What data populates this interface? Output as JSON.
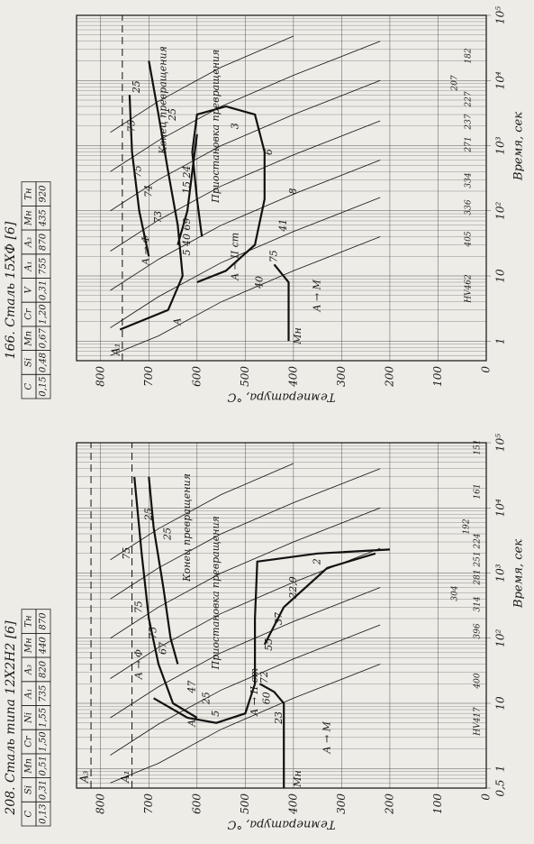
{
  "chart_data": [
    {
      "type": "line",
      "title": "208. Сталь типа 12Х2Н2 [6]",
      "table": {
        "header": [
          "C",
          "Si",
          "Mn",
          "Cr",
          "Ni",
          "A₁",
          "A₃",
          "Mн",
          "Tн"
        ],
        "row": [
          "0,13",
          "0,31",
          "0,51",
          "1,50",
          "1,55",
          "735",
          "820",
          "440",
          "870"
        ]
      },
      "xlabel": "Время, сек",
      "ylabel": "Температура, °C",
      "log_x": true,
      "grid": true,
      "xlim": [
        0.5,
        100000
      ],
      "ylim": [
        0,
        850
      ],
      "xticks": [
        {
          "value": 0.5,
          "label": "0,5"
        },
        1,
        10,
        {
          "value": 100,
          "label": "10²"
        },
        {
          "value": 1000,
          "label": "10³"
        },
        {
          "value": 10000,
          "label": "10⁴"
        },
        {
          "value": 100000,
          "label": "10⁵"
        }
      ],
      "yticks": [
        0,
        100,
        200,
        300,
        400,
        500,
        600,
        700,
        800
      ],
      "critical_lines": [
        {
          "label": "A₃",
          "value": 820
        },
        {
          "label": "A₁",
          "value": 735
        }
      ],
      "transformation_curves": [
        {
          "x": [
            6,
            10,
            40,
            200,
            2000,
            30000
          ],
          "y": [
            600,
            650,
            680,
            700,
            715,
            730
          ]
        },
        {
          "x": [
            40,
            100,
            600,
            5000,
            30000
          ],
          "y": [
            640,
            655,
            670,
            690,
            700
          ]
        },
        {
          "x": [
            12,
            6,
            5,
            7,
            20,
            200,
            1500,
            2000,
            2300
          ],
          "y": [
            690,
            620,
            560,
            500,
            480,
            480,
            475,
            350,
            200
          ]
        },
        {
          "x": [
            0.5,
            10,
            15,
            20
          ],
          "y": [
            420,
            420,
            440,
            470
          ]
        },
        {
          "x": [
            80,
            300,
            1200,
            2000
          ],
          "y": [
            460,
            420,
            330,
            230
          ]
        }
      ],
      "cooling_curves": [
        {
          "x": [
            0.6,
            1.2,
            4,
            12,
            40
          ],
          "y": [
            780,
            680,
            550,
            400,
            220
          ]
        },
        {
          "x": [
            1.6,
            4.8,
            16,
            48,
            160
          ],
          "y": [
            780,
            680,
            550,
            400,
            220
          ]
        },
        {
          "x": [
            6,
            18,
            60,
            180,
            600
          ],
          "y": [
            780,
            680,
            550,
            400,
            220
          ]
        },
        {
          "x": [
            24,
            72,
            240,
            720,
            2400
          ],
          "y": [
            780,
            680,
            550,
            400,
            220
          ]
        },
        {
          "x": [
            100,
            300,
            1000,
            3000,
            10000
          ],
          "y": [
            780,
            680,
            550,
            400,
            220
          ]
        },
        {
          "x": [
            400,
            1200,
            4000,
            12000,
            40000
          ],
          "y": [
            780,
            680,
            550,
            400,
            220
          ]
        },
        {
          "x": [
            1600,
            4800,
            16000,
            48000
          ],
          "y": [
            780,
            680,
            550,
            400
          ]
        }
      ],
      "annotations": [
        "A",
        "Mн",
        "A → M",
        "A → II ст",
        "A → Φ",
        "5",
        "25",
        "47",
        "23",
        "60",
        "72",
        "55",
        "37",
        "22,9",
        "2",
        "67",
        "75",
        "75",
        "75",
        "Приостановка превращения",
        "Конец превращения",
        "25",
        "25"
      ],
      "hardness": [
        "HV417",
        "400",
        "396",
        "314",
        "304",
        "281",
        "251",
        "224",
        "192",
        "161",
        "151"
      ]
    },
    {
      "type": "line",
      "title": "166. Сталь 15ХФ [6]",
      "table": {
        "header": [
          "C",
          "Si",
          "Mn",
          "Cr",
          "V",
          "A₁",
          "A₃",
          "Mн",
          "Tн"
        ],
        "row": [
          "0,15",
          "0,48",
          "0,67",
          "1,20",
          "0,31",
          "755",
          "870",
          "435",
          "920"
        ]
      },
      "xlabel": "Время, сек",
      "ylabel": "Температура, °C",
      "log_x": true,
      "grid": true,
      "xlim": [
        0.5,
        100000
      ],
      "ylim": [
        0,
        850
      ],
      "xticks": [
        1,
        10,
        {
          "value": 100,
          "label": "10²"
        },
        {
          "value": 1000,
          "label": "10³"
        },
        {
          "value": 10000,
          "label": "10⁴"
        },
        {
          "value": 100000,
          "label": "10⁵"
        }
      ],
      "yticks": [
        0,
        100,
        200,
        300,
        400,
        500,
        600,
        700,
        800
      ],
      "critical_lines": [
        {
          "label": "A₁",
          "value": 755
        }
      ],
      "transformation_curves": [
        {
          "x": [
            1.5,
            3,
            10,
            60,
            400,
            3000,
            20000
          ],
          "y": [
            760,
            660,
            630,
            640,
            660,
            680,
            700
          ]
        },
        {
          "x": [
            20,
            100,
            800,
            6000
          ],
          "y": [
            700,
            720,
            735,
            740
          ]
        },
        {
          "x": [
            8,
            12,
            30,
            150,
            800,
            3000,
            4000,
            3000,
            800,
            150,
            40
          ],
          "y": [
            600,
            540,
            480,
            460,
            460,
            480,
            540,
            600,
            610,
            600,
            590
          ]
        },
        {
          "x": [
            1,
            8,
            15
          ],
          "y": [
            410,
            410,
            440
          ]
        },
        {
          "x": [
            30,
            100,
            400,
            1500
          ],
          "y": [
            640,
            620,
            610,
            600
          ]
        }
      ],
      "cooling_curves": [
        {
          "x": [
            0.6,
            1.2,
            4,
            12,
            40
          ],
          "y": [
            780,
            680,
            550,
            400,
            220
          ]
        },
        {
          "x": [
            1.6,
            4.8,
            16,
            48,
            160
          ],
          "y": [
            780,
            680,
            550,
            400,
            220
          ]
        },
        {
          "x": [
            6,
            18,
            60,
            180,
            600
          ],
          "y": [
            780,
            680,
            550,
            400,
            220
          ]
        },
        {
          "x": [
            24,
            72,
            240,
            720,
            2400
          ],
          "y": [
            780,
            680,
            550,
            400,
            220
          ]
        },
        {
          "x": [
            100,
            300,
            1000,
            3000,
            10000
          ],
          "y": [
            780,
            680,
            550,
            400,
            220
          ]
        },
        {
          "x": [
            400,
            1200,
            4000,
            12000,
            40000
          ],
          "y": [
            780,
            680,
            550,
            400,
            220
          ]
        },
        {
          "x": [
            1600,
            4800,
            16000,
            48000
          ],
          "y": [
            780,
            680,
            550,
            400
          ]
        }
      ],
      "annotations": [
        "A",
        "Mн",
        "A → M",
        "A → II ст",
        "A → Φ",
        "5 40 69",
        "40",
        "75",
        "41",
        "8",
        "6",
        "3",
        "73",
        "74",
        "75",
        "75",
        "25",
        "25",
        "15 24",
        "Приостановка превращения",
        "Конец превращения"
      ],
      "hardness": [
        "HV462",
        "405",
        "336",
        "334",
        "271",
        "237",
        "227",
        "207",
        "182"
      ]
    }
  ]
}
